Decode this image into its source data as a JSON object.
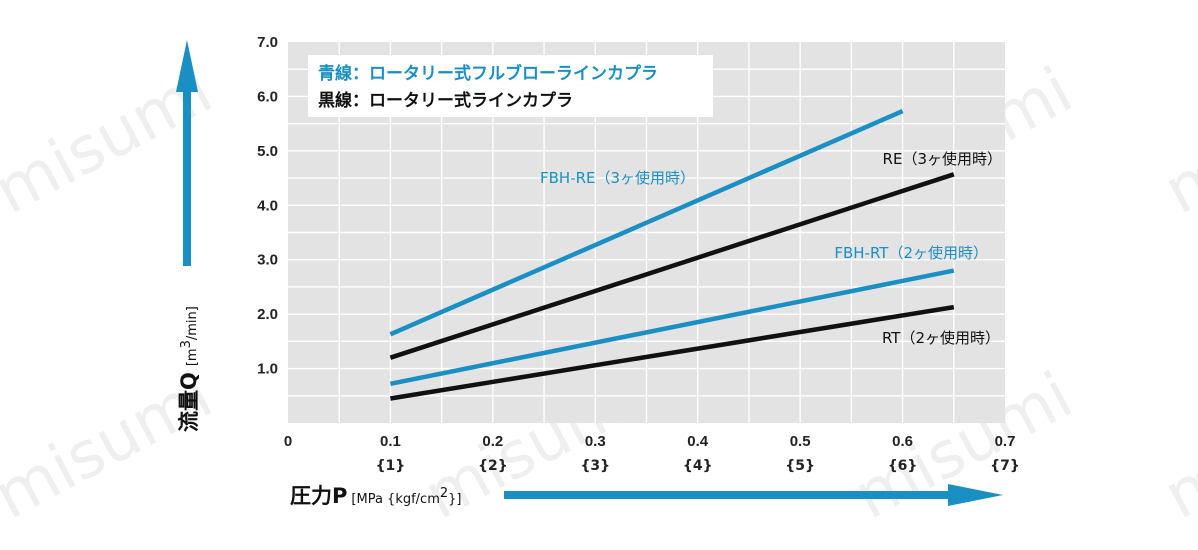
{
  "chart_data": {
    "type": "line",
    "xlim": [
      0,
      0.7
    ],
    "ylim": [
      0,
      7.0
    ],
    "grid": true,
    "legend_position": "top-left",
    "x_ticks": [
      "0",
      "0.1",
      "0.2",
      "0.3",
      "0.4",
      "0.5",
      "0.6",
      "0.7"
    ],
    "x_ticks_kgf": [
      "{1}",
      "{2}",
      "{3}",
      "{4}",
      "{5}",
      "{6}",
      "{7}"
    ],
    "y_ticks": [
      "1.0",
      "2.0",
      "3.0",
      "4.0",
      "5.0",
      "6.0",
      "7.0"
    ],
    "xlabel": {
      "main": "圧力P",
      "unit_prefix": "[MPa {kgf/cm",
      "unit_sup": "2",
      "unit_suffix": "}]"
    },
    "ylabel": {
      "main": "流量Q",
      "unit_prefix": "[m",
      "unit_sup": "3",
      "unit_suffix": "/min]"
    },
    "legend": [
      {
        "text": "青線：ロータリー式フルブローラインカプラ",
        "color": "#1a8fc4"
      },
      {
        "text": "黒線：ロータリー式ラインカプラ",
        "color": "#111111"
      }
    ],
    "series": [
      {
        "name": "FBH-RE（3ヶ使用時）",
        "color": "#1a8fc4",
        "x": [
          0.1,
          0.6
        ],
        "y": [
          1.63,
          5.73
        ]
      },
      {
        "name": "RE（3ヶ使用時）",
        "color": "#111111",
        "x": [
          0.1,
          0.65
        ],
        "y": [
          1.2,
          4.57
        ]
      },
      {
        "name": "FBH-RT（2ヶ使用時）",
        "color": "#1a8fc4",
        "x": [
          0.1,
          0.65
        ],
        "y": [
          0.72,
          2.8
        ]
      },
      {
        "name": "RT（2ヶ使用時）",
        "color": "#111111",
        "x": [
          0.1,
          0.65
        ],
        "y": [
          0.45,
          2.13
        ]
      }
    ]
  },
  "colors": {
    "plot_bg": "#e3e3e3",
    "grid": "#ffffff",
    "axis_arrow": "#1a8fc4"
  },
  "watermark": "misumi"
}
